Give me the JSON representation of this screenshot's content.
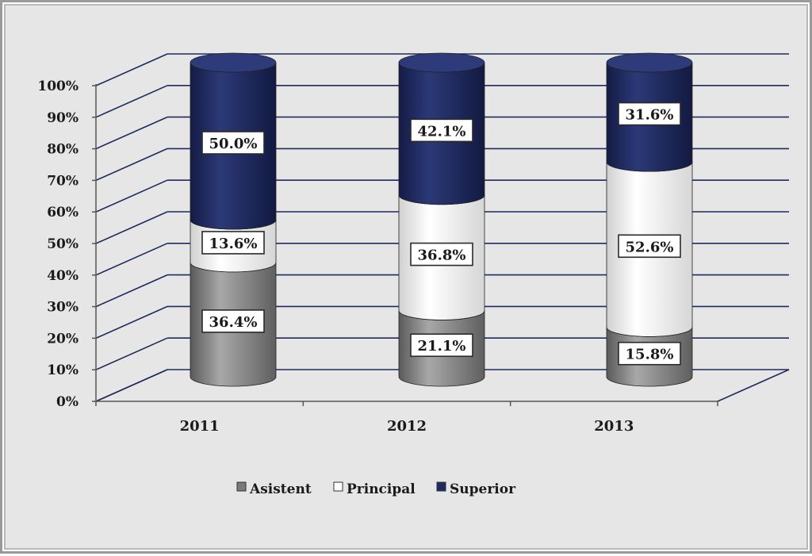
{
  "chart_data": {
    "type": "bar",
    "stacked": true,
    "percent_stacked": true,
    "style": "3d-cylinder",
    "categories": [
      "2011",
      "2012",
      "2013"
    ],
    "series": [
      {
        "name": "Asistent",
        "values": [
          36.4,
          21.1,
          15.8
        ],
        "color": "#7a7a7a"
      },
      {
        "name": "Principal",
        "values": [
          13.6,
          36.8,
          52.6
        ],
        "color": "#f4f4f4"
      },
      {
        "name": "Superior",
        "values": [
          50.0,
          42.1,
          31.6
        ],
        "color": "#1f2a5e"
      }
    ],
    "data_labels": [
      [
        "36.4%",
        "21.1%",
        "15.8%"
      ],
      [
        "13.6%",
        "36.8%",
        "52.6%"
      ],
      [
        "50.0%",
        "42.1%",
        "31.6%"
      ]
    ],
    "y_ticks": [
      "0%",
      "10%",
      "20%",
      "30%",
      "40%",
      "50%",
      "60%",
      "70%",
      "80%",
      "90%",
      "100%"
    ],
    "ylim": [
      0,
      100
    ],
    "grid": true,
    "legend_position": "bottom",
    "title": "",
    "xlabel": "",
    "ylabel": ""
  },
  "colors": {
    "gridline": "#1f2a5e",
    "background": "#e6e6e6"
  }
}
